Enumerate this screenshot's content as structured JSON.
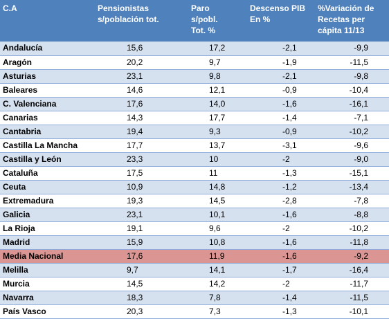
{
  "headers": {
    "region": [
      "C.A"
    ],
    "pensionistas": [
      "Pensionistas",
      "s/población tot."
    ],
    "paro": [
      "Paro",
      "s/pobl.",
      "Tot. %"
    ],
    "pib": [
      "Descenso PIB",
      "En %"
    ],
    "variacion": [
      "%Variación  de",
      "Recetas per",
      "cápita 11/13"
    ]
  },
  "rows": [
    {
      "region": "Andalucía",
      "pensionistas": "15,6",
      "paro": "17,2",
      "pib": "-2,1",
      "variacion": "-9,9"
    },
    {
      "region": "Aragón",
      "pensionistas": "20,2",
      "paro": "9,7",
      "pib": "-1,9",
      "variacion": "-11,5"
    },
    {
      "region": "Asturias",
      "pensionistas": "23,1",
      "paro": "9,8",
      "pib": "-2,1",
      "variacion": "-9,8"
    },
    {
      "region": "Baleares",
      "pensionistas": "14,6",
      "paro": "12,1",
      "pib": "-0,9",
      "variacion": "-10,4"
    },
    {
      "region": "C. Valenciana",
      "pensionistas": "17,6",
      "paro": "14,0",
      "pib": "-1,6",
      "variacion": "-16,1"
    },
    {
      "region": "Canarias",
      "pensionistas": "14,3",
      "paro": "17,7",
      "pib": "-1,4",
      "variacion": "-7,1"
    },
    {
      "region": "Cantabria",
      "pensionistas": "19,4",
      "paro": "9,3",
      "pib": "-0,9",
      "variacion": "-10,2"
    },
    {
      "region": "Castilla La Mancha",
      "pensionistas": "17,7",
      "paro": "13,7",
      "pib": "-3,1",
      "variacion": "-9,6"
    },
    {
      "region": "Castilla y León",
      "pensionistas": "23,3",
      "paro": "10",
      "pib": "-2",
      "variacion": "-9,0"
    },
    {
      "region": "Cataluña",
      "pensionistas": "17,5",
      "paro": "11",
      "pib": "-1,3",
      "variacion": "-15,1"
    },
    {
      "region": "Ceuta",
      "pensionistas": "10,9",
      "paro": "14,8",
      "pib": "-1,2",
      "variacion": "-13,4"
    },
    {
      "region": "Extremadura",
      "pensionistas": "19,3",
      "paro": "14,5",
      "pib": "-2,8",
      "variacion": "-7,8"
    },
    {
      "region": "Galicia",
      "pensionistas": "23,1",
      "paro": "10,1",
      "pib": "-1,6",
      "variacion": "-8,8"
    },
    {
      "region": "La Rioja",
      "pensionistas": "19,1",
      "paro": "9,6",
      "pib": "-2",
      "variacion": "-10,2"
    },
    {
      "region": "Madrid",
      "pensionistas": "15,9",
      "paro": "10,8",
      "pib": "-1,6",
      "variacion": "-11,8"
    },
    {
      "region": "Media Nacional",
      "pensionistas": "17,6",
      "paro": "11,9",
      "pib": "-1,6",
      "variacion": "-9,2",
      "highlight": true
    },
    {
      "region": "Melilla",
      "pensionistas": "9,7",
      "paro": "14,1",
      "pib": "-1,7",
      "variacion": "-16,4"
    },
    {
      "region": "Murcia",
      "pensionistas": "14,5",
      "paro": "14,2",
      "pib": "-2",
      "variacion": "-11,7"
    },
    {
      "region": "Navarra",
      "pensionistas": "18,3",
      "paro": "7,8",
      "pib": "-1,4",
      "variacion": "-11,5"
    },
    {
      "region": "País Vasco",
      "pensionistas": "20,3",
      "paro": "7,3",
      "pib": "-1,3",
      "variacion": "-10,1"
    }
  ],
  "colors": {
    "header_bg": "#4f81bd",
    "header_text": "#ffffff",
    "band_odd": "#d6e1f0",
    "band_even": "#ffffff",
    "highlight": "#db9694",
    "row_border": "#8eaadb"
  }
}
